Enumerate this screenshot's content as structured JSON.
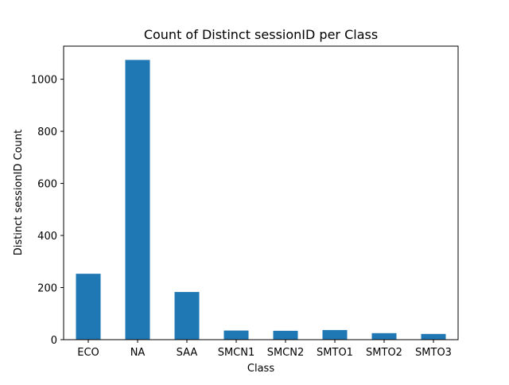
{
  "chart_data": {
    "type": "bar",
    "title": "Count of Distinct sessionID per Class",
    "xlabel": "Class",
    "ylabel": "Distinct sessionID Count",
    "categories": [
      "ECO",
      "NA",
      "SAA",
      "SMCN1",
      "SMCN2",
      "SMTO1",
      "SMTO2",
      "SMTO3"
    ],
    "values": [
      253,
      1074,
      183,
      35,
      34,
      37,
      25,
      22
    ],
    "ylim": [
      0,
      1127
    ],
    "yticks": [
      0,
      200,
      400,
      600,
      800,
      1000
    ],
    "grid": false,
    "legend": "none",
    "bar_color": "#1f77b4"
  }
}
